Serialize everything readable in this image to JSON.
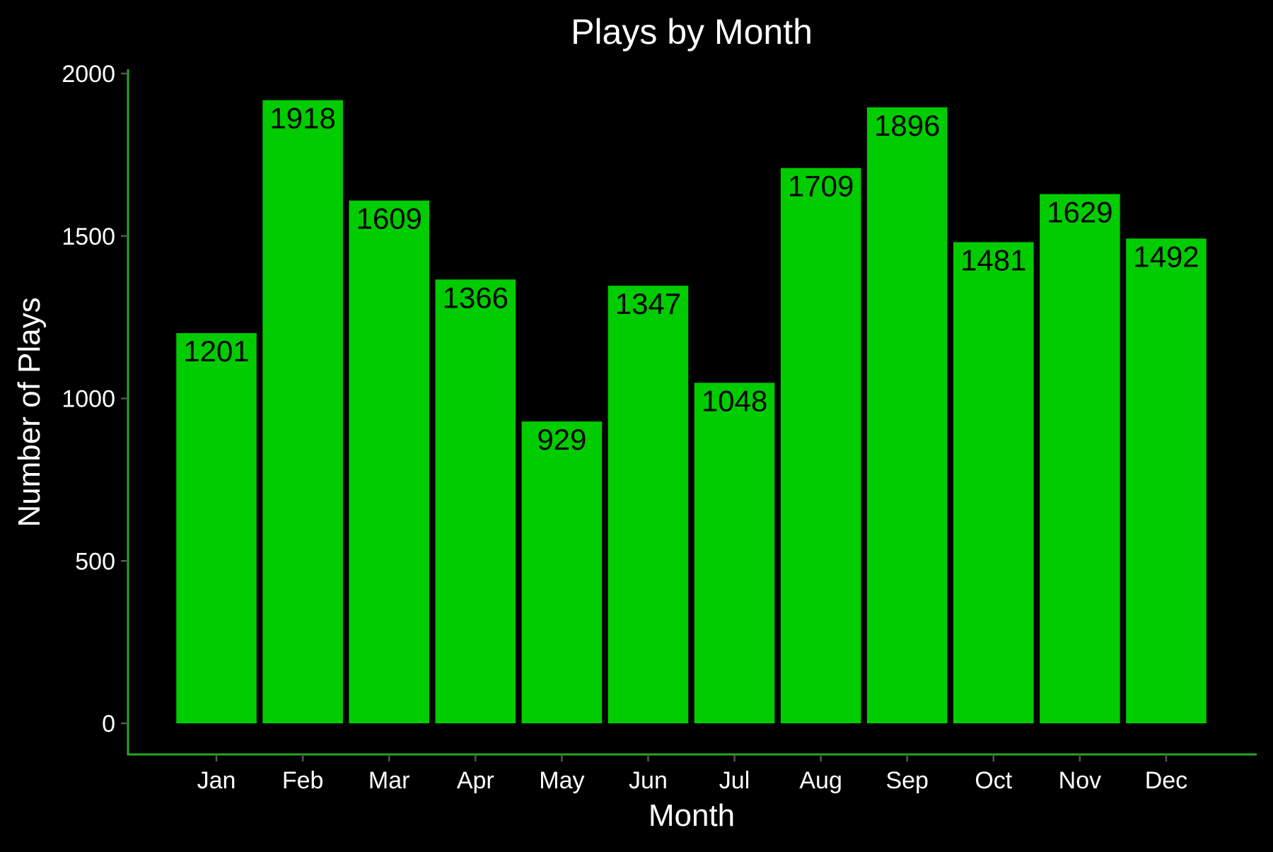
{
  "chart_data": {
    "type": "bar",
    "title": "Plays by Month",
    "xlabel": "Month",
    "ylabel": "Number of Plays",
    "categories": [
      "Jan",
      "Feb",
      "Mar",
      "Apr",
      "May",
      "Jun",
      "Jul",
      "Aug",
      "Sep",
      "Oct",
      "Nov",
      "Dec"
    ],
    "values": [
      1201,
      1918,
      1609,
      1366,
      929,
      1347,
      1048,
      1709,
      1896,
      1481,
      1629,
      1492
    ],
    "ylim": [
      0,
      2000
    ],
    "yticks": [
      0,
      500,
      1000,
      1500,
      2000
    ],
    "grid": false,
    "legend": "none",
    "data_labels": true
  },
  "colors": {
    "background": "#000000",
    "bar": "#00CC00",
    "axis": "#22AA22",
    "text": "#FFFFFF",
    "tick": "#555555",
    "label_text": "#000000"
  }
}
